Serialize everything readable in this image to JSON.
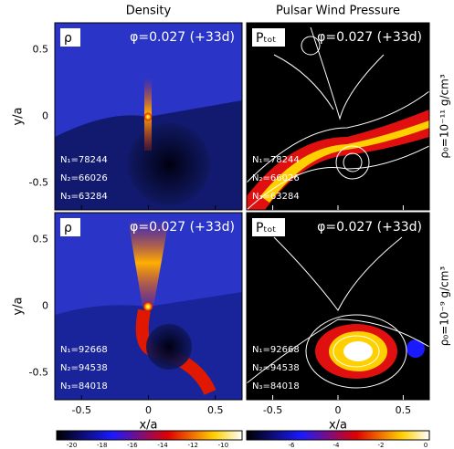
{
  "columns": [
    "Density",
    "Pulsar Wind Pressure"
  ],
  "rows": [
    {
      "side_label": "ρ₀=10⁻¹¹ g/cm³",
      "panels": [
        {
          "label": "ρ",
          "phase": "φ=0.027 (+33d)",
          "counts": [
            "N₁=78244",
            "N₂=66026",
            "N₃=63284"
          ]
        },
        {
          "label": "Pₜₒₜ",
          "phase": "φ=0.027 (+33d)",
          "counts": [
            "N₁=78244",
            "N₂=66026",
            "N₃=63284"
          ]
        }
      ]
    },
    {
      "side_label": "ρ₀=10⁻⁹ g/cm³",
      "panels": [
        {
          "label": "ρ",
          "phase": "φ=0.027 (+33d)",
          "counts": [
            "N₁=92668",
            "N₂=94538",
            "N₃=84018"
          ]
        },
        {
          "label": "Pₜₒₜ",
          "phase": "φ=0.027 (+33d)",
          "counts": [
            "N₁=92668",
            "N₂=94538",
            "N₃=84018"
          ]
        }
      ]
    }
  ],
  "x_label": "x/a",
  "y_label": "y/a",
  "x_ticks": [
    "-0.5",
    "0",
    "0.5"
  ],
  "y_ticks": [
    "0.5",
    "0",
    "-0.5"
  ],
  "colorbars": [
    [
      "-20",
      "-18",
      "-16",
      "-14",
      "-12",
      "-10"
    ],
    [
      "-6",
      "-4",
      "-2",
      "0"
    ]
  ]
}
